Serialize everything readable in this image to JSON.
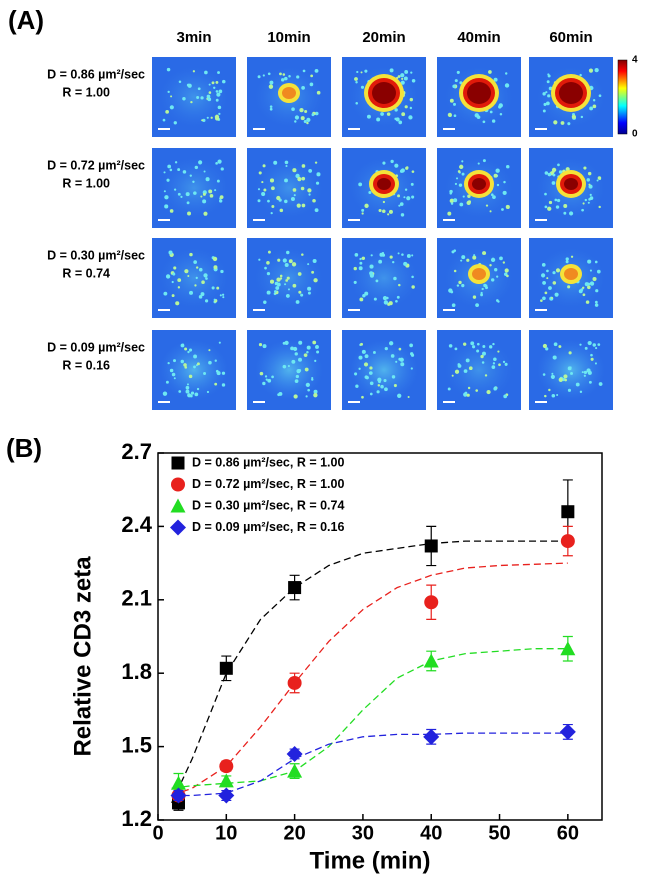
{
  "panel_a": {
    "label": "(A)",
    "columns": [
      "3min",
      "10min",
      "20min",
      "40min",
      "60min"
    ],
    "rows": [
      {
        "d": "D = 0.86 µm²/sec",
        "r": "R = 1.00"
      },
      {
        "d": "D = 0.72 µm²/sec",
        "r": "R = 1.00"
      },
      {
        "d": "D = 0.30 µm²/sec",
        "r": "R = 0.74"
      },
      {
        "d": "D = 0.09 µm²/sec",
        "r": "R = 0.16"
      }
    ],
    "colorbar_ticks": [
      0,
      4
    ]
  },
  "chart_data": {
    "type": "scatter",
    "panel_label": "(B)",
    "xlabel": "Time (min)",
    "ylabel": "Relative CD3 zeta",
    "x": [
      3,
      10,
      20,
      40,
      60
    ],
    "xlim": [
      0,
      65
    ],
    "xticks": [
      0,
      10,
      20,
      30,
      40,
      50,
      60
    ],
    "ylim": [
      1.2,
      2.7
    ],
    "yticks": [
      1.2,
      1.5,
      1.8,
      2.1,
      2.4,
      2.7
    ],
    "legend": "upper left",
    "fit_x": [
      2,
      5,
      10,
      15,
      20,
      25,
      30,
      35,
      40,
      45,
      50,
      55,
      60
    ],
    "series": [
      {
        "name": "D = 0.86 µm²/sec, R = 1.00",
        "color": "#000000",
        "marker": "square",
        "values": [
          1.27,
          1.82,
          2.15,
          2.32,
          2.46
        ],
        "errors": [
          0.03,
          0.05,
          0.05,
          0.08,
          0.13
        ],
        "fit": [
          1.27,
          1.45,
          1.8,
          2.02,
          2.15,
          2.24,
          2.29,
          2.31,
          2.33,
          2.34,
          2.34,
          2.34,
          2.34
        ]
      },
      {
        "name": "D = 0.72 µm²/sec, R = 1.00",
        "color": "#e8211d",
        "marker": "circle",
        "values": [
          1.3,
          1.42,
          1.76,
          2.09,
          2.34
        ],
        "errors": [
          0.02,
          0.02,
          0.04,
          0.07,
          0.06
        ],
        "fit": [
          1.3,
          1.33,
          1.42,
          1.58,
          1.76,
          1.93,
          2.06,
          2.15,
          2.2,
          2.23,
          2.24,
          2.245,
          2.25
        ]
      },
      {
        "name": "D = 0.30 µm²/sec, R = 0.74",
        "color": "#22dd22",
        "marker": "triangle",
        "values": [
          1.35,
          1.36,
          1.4,
          1.85,
          1.9
        ],
        "errors": [
          0.04,
          0.02,
          0.03,
          0.04,
          0.05
        ],
        "fit": [
          1.33,
          1.34,
          1.35,
          1.36,
          1.4,
          1.5,
          1.65,
          1.78,
          1.85,
          1.88,
          1.89,
          1.9,
          1.9
        ]
      },
      {
        "name": "D = 0.09 µm²/sec, R = 0.16",
        "color": "#2222dd",
        "marker": "diamond",
        "values": [
          1.3,
          1.3,
          1.47,
          1.54,
          1.56
        ],
        "errors": [
          0.02,
          0.02,
          0.02,
          0.03,
          0.03
        ],
        "fit": [
          1.3,
          1.3,
          1.31,
          1.36,
          1.45,
          1.51,
          1.54,
          1.55,
          1.55,
          1.555,
          1.555,
          1.555,
          1.555
        ]
      }
    ]
  }
}
